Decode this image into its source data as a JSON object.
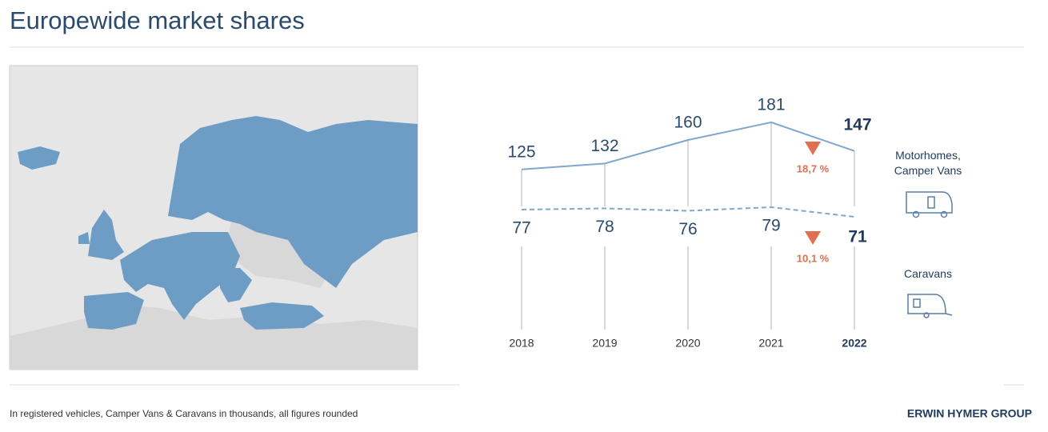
{
  "title": "Europewide market shares",
  "footnote": "In registered vehicles, Camper Vans & Caravans in thousands, all figures rounded",
  "brand": "ERWIN HYMER GROUP",
  "chart_data": {
    "type": "line",
    "categories": [
      "2018",
      "2019",
      "2020",
      "2021",
      "2022"
    ],
    "series": [
      {
        "name": "Motorhomes, Camper Vans",
        "color": "#7fa8cc",
        "values": [
          125,
          132,
          160,
          181,
          147
        ],
        "dash": false
      },
      {
        "name": "Caravans",
        "color": "#7fa8cc",
        "values": [
          77,
          78,
          76,
          79,
          71
        ],
        "dash": true,
        "axis": "y2"
      }
    ],
    "ylim": [
      100,
      200
    ],
    "y2lim": [
      60,
      90
    ],
    "annotations": [
      "18,7 %",
      "10,1 %"
    ],
    "annotation_color": "#e0704f"
  }
}
